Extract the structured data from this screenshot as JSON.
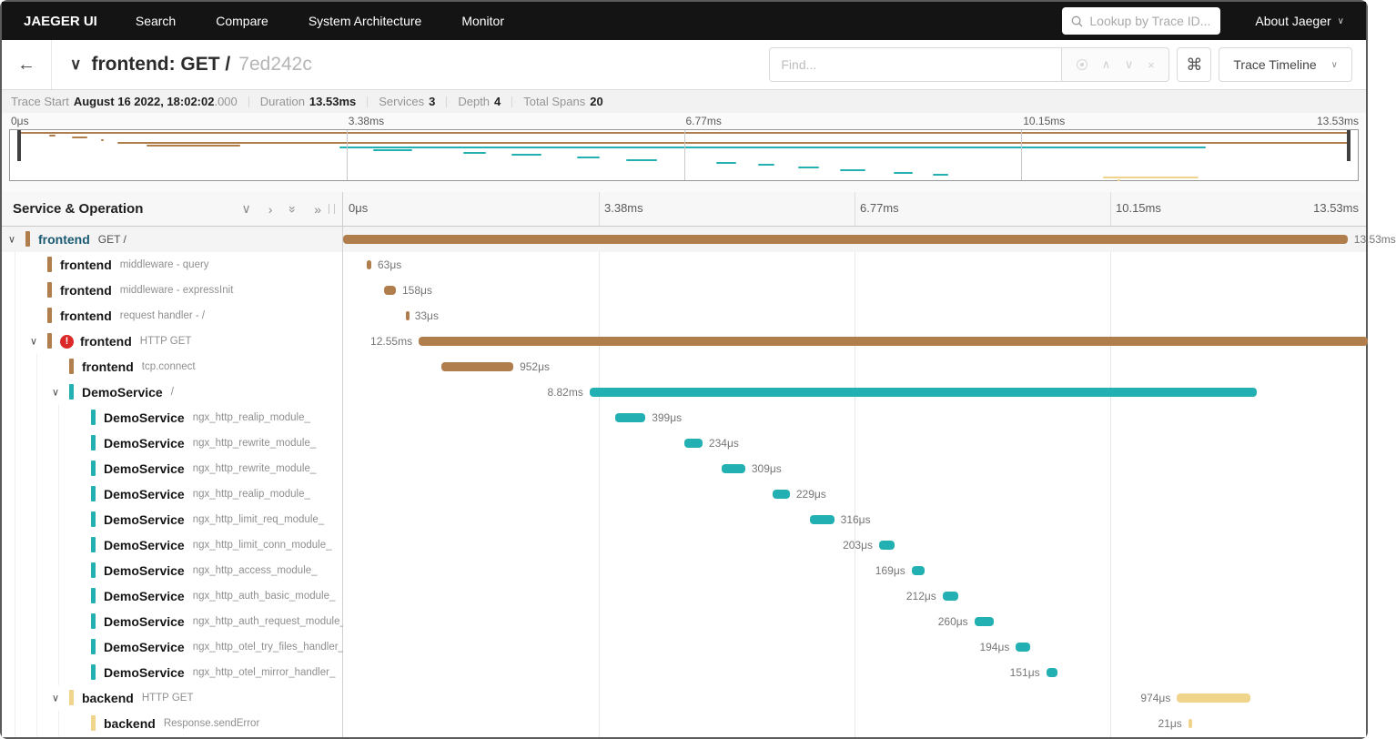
{
  "nav": {
    "brand": "JAEGER UI",
    "items": [
      "Search",
      "Compare",
      "System Architecture",
      "Monitor"
    ],
    "lookup_placeholder": "Lookup by Trace ID...",
    "about": "About Jaeger"
  },
  "header": {
    "title": "frontend: GET /",
    "trace_id": "7ed242c",
    "find_placeholder": "Find...",
    "view_dropdown": "Trace Timeline"
  },
  "summary": {
    "trace_start_label": "Trace Start",
    "trace_start_value": "August 16 2022, 18:02:02",
    "trace_start_ms": ".000",
    "duration_label": "Duration",
    "duration_value": "13.53ms",
    "services_label": "Services",
    "services_value": "3",
    "depth_label": "Depth",
    "depth_value": "4",
    "total_spans_label": "Total Spans",
    "total_spans_value": "20"
  },
  "icons": {
    "back": "←",
    "chevron_down": "∨",
    "chevron_right": "›",
    "double_right": "»",
    "caret_up": "∧",
    "caret_down": "∨",
    "close": "×",
    "command": "⌘"
  },
  "timeline": {
    "sidebar_title": "Service & Operation",
    "ticks": [
      "0μs",
      "3.38ms",
      "6.77ms",
      "10.15ms",
      "13.53ms"
    ],
    "total_ms": 13.53
  },
  "colors": {
    "frontend": "#b07d4c",
    "demo": "#22b0b2",
    "backend": "#f0d48c",
    "error": "#db2828",
    "selected_service": "#1a5a72"
  },
  "spans": [
    {
      "service": "frontend",
      "operation": "GET /",
      "depth": 0,
      "parent": true,
      "error": false,
      "color": "frontend",
      "selected": true,
      "start_ms": 0,
      "duration_ms": 13.53,
      "duration_label": "13.53ms",
      "label_side": "right"
    },
    {
      "service": "frontend",
      "operation": "middleware - query",
      "depth": 1,
      "parent": false,
      "error": false,
      "color": "frontend",
      "start_ms": 0.31,
      "duration_ms": 0.063,
      "duration_label": "63μs",
      "label_side": "right"
    },
    {
      "service": "frontend",
      "operation": "middleware - expressInit",
      "depth": 1,
      "parent": false,
      "error": false,
      "color": "frontend",
      "start_ms": 0.54,
      "duration_ms": 0.158,
      "duration_label": "158μs",
      "label_side": "right"
    },
    {
      "service": "frontend",
      "operation": "request handler - /",
      "depth": 1,
      "parent": false,
      "error": false,
      "color": "frontend",
      "start_ms": 0.83,
      "duration_ms": 0.033,
      "duration_label": "33μs",
      "label_side": "right"
    },
    {
      "service": "frontend",
      "operation": "HTTP GET",
      "depth": 1,
      "parent": true,
      "error": true,
      "color": "frontend",
      "start_ms": 1.0,
      "duration_ms": 12.55,
      "duration_label": "12.55ms",
      "label_side": "left"
    },
    {
      "service": "frontend",
      "operation": "tcp.connect",
      "depth": 2,
      "parent": false,
      "error": false,
      "color": "frontend",
      "start_ms": 1.3,
      "duration_ms": 0.952,
      "duration_label": "952μs",
      "label_side": "right"
    },
    {
      "service": "DemoService",
      "operation": "/",
      "depth": 2,
      "parent": true,
      "error": false,
      "color": "demo",
      "start_ms": 3.26,
      "duration_ms": 8.82,
      "duration_label": "8.82ms",
      "label_side": "left"
    },
    {
      "service": "DemoService",
      "operation": "ngx_http_realip_module_",
      "depth": 3,
      "parent": false,
      "error": false,
      "color": "demo",
      "start_ms": 3.6,
      "duration_ms": 0.399,
      "duration_label": "399μs",
      "label_side": "right"
    },
    {
      "service": "DemoService",
      "operation": "ngx_http_rewrite_module_",
      "depth": 3,
      "parent": false,
      "error": false,
      "color": "demo",
      "start_ms": 4.52,
      "duration_ms": 0.234,
      "duration_label": "234μs",
      "label_side": "right"
    },
    {
      "service": "DemoService",
      "operation": "ngx_http_rewrite_module_",
      "depth": 3,
      "parent": false,
      "error": false,
      "color": "demo",
      "start_ms": 5.01,
      "duration_ms": 0.309,
      "duration_label": "309μs",
      "label_side": "right"
    },
    {
      "service": "DemoService",
      "operation": "ngx_http_realip_module_",
      "depth": 3,
      "parent": false,
      "error": false,
      "color": "demo",
      "start_ms": 5.68,
      "duration_ms": 0.229,
      "duration_label": "229μs",
      "label_side": "right"
    },
    {
      "service": "DemoService",
      "operation": "ngx_http_limit_req_module_",
      "depth": 3,
      "parent": false,
      "error": false,
      "color": "demo",
      "start_ms": 6.18,
      "duration_ms": 0.316,
      "duration_label": "316μs",
      "label_side": "right"
    },
    {
      "service": "DemoService",
      "operation": "ngx_http_limit_conn_module_",
      "depth": 3,
      "parent": false,
      "error": false,
      "color": "demo",
      "start_ms": 7.09,
      "duration_ms": 0.203,
      "duration_label": "203μs",
      "label_side": "left"
    },
    {
      "service": "DemoService",
      "operation": "ngx_http_access_module_",
      "depth": 3,
      "parent": false,
      "error": false,
      "color": "demo",
      "start_ms": 7.52,
      "duration_ms": 0.169,
      "duration_label": "169μs",
      "label_side": "left"
    },
    {
      "service": "DemoService",
      "operation": "ngx_http_auth_basic_module_",
      "depth": 3,
      "parent": false,
      "error": false,
      "color": "demo",
      "start_ms": 7.93,
      "duration_ms": 0.212,
      "duration_label": "212μs",
      "label_side": "left"
    },
    {
      "service": "DemoService",
      "operation": "ngx_http_auth_request_module_",
      "depth": 3,
      "parent": false,
      "error": false,
      "color": "demo",
      "start_ms": 8.35,
      "duration_ms": 0.26,
      "duration_label": "260μs",
      "label_side": "left"
    },
    {
      "service": "DemoService",
      "operation": "ngx_http_otel_try_files_handler_",
      "depth": 3,
      "parent": false,
      "error": false,
      "color": "demo",
      "start_ms": 8.9,
      "duration_ms": 0.194,
      "duration_label": "194μs",
      "label_side": "left"
    },
    {
      "service": "DemoService",
      "operation": "ngx_http_otel_mirror_handler_",
      "depth": 3,
      "parent": false,
      "error": false,
      "color": "demo",
      "start_ms": 9.3,
      "duration_ms": 0.151,
      "duration_label": "151μs",
      "label_side": "left"
    },
    {
      "service": "backend",
      "operation": "HTTP GET",
      "depth": 2,
      "parent": true,
      "error": false,
      "color": "backend",
      "start_ms": 11.03,
      "duration_ms": 0.974,
      "duration_label": "974μs",
      "label_side": "left"
    },
    {
      "service": "backend",
      "operation": "Response.sendError",
      "depth": 3,
      "parent": false,
      "error": false,
      "color": "backend",
      "start_ms": 11.18,
      "duration_ms": 0.021,
      "duration_label": "21μs",
      "label_side": "left"
    }
  ]
}
